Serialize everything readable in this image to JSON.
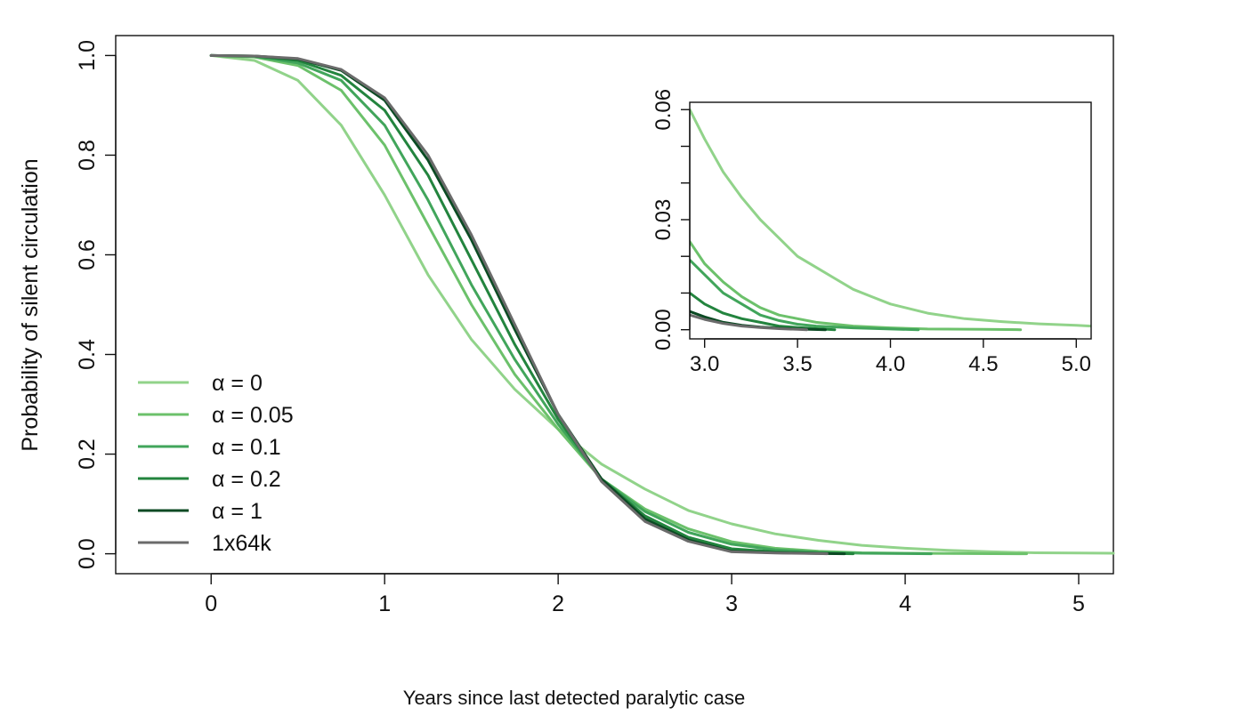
{
  "chart_data": [
    {
      "type": "line",
      "title": "",
      "xlabel": "Years since last detected paralytic case",
      "ylabel": "Probability of silent circulation",
      "xlim": [
        -0.55,
        5.2
      ],
      "ylim": [
        -0.04,
        1.04
      ],
      "xticks": [
        0,
        1,
        2,
        3,
        4,
        5
      ],
      "xtick_labels": [
        "0",
        "1",
        "2",
        "3",
        "4",
        "5"
      ],
      "yticks": [
        0.0,
        0.2,
        0.4,
        0.6,
        0.8,
        1.0
      ],
      "ytick_labels": [
        "0.0",
        "0.2",
        "0.4",
        "0.6",
        "0.8",
        "1.0"
      ],
      "grid": false,
      "legend_position": "bottom-left",
      "series": [
        {
          "name": "α = 0",
          "color": "#91d38a",
          "x": [
            0,
            0.25,
            0.5,
            0.75,
            1.0,
            1.25,
            1.5,
            1.75,
            2.0,
            2.25,
            2.5,
            2.75,
            3.0,
            3.25,
            3.5,
            3.75,
            4.0,
            4.25,
            4.5,
            4.75,
            5.0,
            5.2
          ],
          "y": [
            1.0,
            0.99,
            0.95,
            0.86,
            0.72,
            0.56,
            0.43,
            0.33,
            0.25,
            0.18,
            0.13,
            0.087,
            0.06,
            0.04,
            0.027,
            0.017,
            0.011,
            0.007,
            0.004,
            0.002,
            0.0015,
            0.001
          ]
        },
        {
          "name": "α = 0.05",
          "color": "#6cc16b",
          "x": [
            0,
            0.25,
            0.5,
            0.75,
            1.0,
            1.25,
            1.5,
            1.75,
            2.0,
            2.25,
            2.5,
            2.75,
            3.0,
            3.25,
            3.5,
            3.75,
            4.0,
            4.25,
            4.5,
            4.7
          ],
          "y": [
            1.0,
            0.997,
            0.98,
            0.93,
            0.82,
            0.66,
            0.5,
            0.36,
            0.25,
            0.15,
            0.09,
            0.05,
            0.024,
            0.011,
            0.005,
            0.002,
            0.001,
            0.0005,
            0.0002,
            0.0
          ]
        },
        {
          "name": "α = 0.1",
          "color": "#41a55b",
          "x": [
            0,
            0.25,
            0.5,
            0.75,
            1.0,
            1.25,
            1.5,
            1.75,
            2.0,
            2.25,
            2.5,
            2.75,
            3.0,
            3.25,
            3.5,
            3.75,
            4.0,
            4.15
          ],
          "y": [
            1.0,
            0.998,
            0.985,
            0.95,
            0.86,
            0.71,
            0.54,
            0.39,
            0.26,
            0.15,
            0.085,
            0.043,
            0.019,
            0.008,
            0.003,
            0.001,
            0.0003,
            0.0
          ]
        },
        {
          "name": "α = 0.2",
          "color": "#23843e",
          "x": [
            0,
            0.25,
            0.5,
            0.75,
            1.0,
            1.25,
            1.5,
            1.75,
            2.0,
            2.25,
            2.5,
            2.75,
            3.0,
            3.25,
            3.5,
            3.7
          ],
          "y": [
            1.0,
            0.999,
            0.99,
            0.96,
            0.89,
            0.76,
            0.59,
            0.42,
            0.27,
            0.15,
            0.076,
            0.033,
            0.01,
            0.004,
            0.001,
            0.0
          ]
        },
        {
          "name": "α = 1",
          "color": "#0b4a23",
          "x": [
            0,
            0.25,
            0.5,
            0.75,
            1.0,
            1.25,
            1.5,
            1.75,
            2.0,
            2.25,
            2.5,
            2.75,
            3.0,
            3.25,
            3.5,
            3.65
          ],
          "y": [
            1.0,
            0.999,
            0.993,
            0.97,
            0.91,
            0.79,
            0.63,
            0.45,
            0.28,
            0.15,
            0.07,
            0.028,
            0.005,
            0.002,
            0.0005,
            0.0
          ]
        },
        {
          "name": "1x64k",
          "color": "#6b6b6b",
          "x": [
            0,
            0.25,
            0.5,
            0.75,
            1.0,
            1.25,
            1.5,
            1.75,
            2.0,
            2.25,
            2.5,
            2.75,
            3.0,
            3.25,
            3.5,
            3.55
          ],
          "y": [
            1.0,
            0.999,
            0.994,
            0.972,
            0.915,
            0.8,
            0.64,
            0.46,
            0.28,
            0.145,
            0.065,
            0.025,
            0.004,
            0.0015,
            0.0003,
            0.0
          ]
        }
      ]
    },
    {
      "type": "line",
      "title": "",
      "xlabel": "",
      "ylabel": "",
      "xlim": [
        2.92,
        5.08
      ],
      "ylim": [
        -0.0025,
        0.062
      ],
      "xticks": [
        3.0,
        3.5,
        4.0,
        4.5,
        5.0
      ],
      "xtick_labels": [
        "3.0",
        "3.5",
        "4.0",
        "4.5",
        "5.0"
      ],
      "yticks": [
        0.0,
        0.01,
        0.02,
        0.03,
        0.04,
        0.05,
        0.06
      ],
      "ytick_labels": [
        "0.00",
        "",
        "",
        "0.03",
        "",
        "",
        "0.06"
      ],
      "grid": false,
      "legend_position": "none",
      "series": [
        {
          "name": "α = 0",
          "color": "#91d38a",
          "x": [
            2.92,
            3.0,
            3.1,
            3.2,
            3.3,
            3.4,
            3.5,
            3.6,
            3.7,
            3.8,
            3.9,
            4.0,
            4.2,
            4.4,
            4.6,
            4.8,
            5.0,
            5.08
          ],
          "y": [
            0.06,
            0.052,
            0.043,
            0.036,
            0.03,
            0.025,
            0.02,
            0.017,
            0.014,
            0.011,
            0.009,
            0.007,
            0.0045,
            0.003,
            0.0022,
            0.0016,
            0.0012,
            0.001
          ]
        },
        {
          "name": "α = 0.05",
          "color": "#6cc16b",
          "x": [
            2.92,
            3.0,
            3.1,
            3.2,
            3.3,
            3.4,
            3.5,
            3.6,
            3.7,
            3.8,
            4.0,
            4.2,
            4.5,
            4.7
          ],
          "y": [
            0.024,
            0.018,
            0.013,
            0.009,
            0.006,
            0.004,
            0.003,
            0.002,
            0.0015,
            0.001,
            0.0005,
            0.0002,
            0.0001,
            0.0
          ]
        },
        {
          "name": "α = 0.1",
          "color": "#41a55b",
          "x": [
            2.92,
            3.0,
            3.1,
            3.2,
            3.3,
            3.4,
            3.5,
            3.6,
            3.8,
            4.0,
            4.15
          ],
          "y": [
            0.019,
            0.015,
            0.01,
            0.007,
            0.004,
            0.0025,
            0.0015,
            0.001,
            0.0005,
            0.0002,
            0.0
          ]
        },
        {
          "name": "α = 0.2",
          "color": "#23843e",
          "x": [
            2.92,
            3.0,
            3.1,
            3.2,
            3.3,
            3.4,
            3.5,
            3.6,
            3.7
          ],
          "y": [
            0.01,
            0.007,
            0.0045,
            0.003,
            0.002,
            0.001,
            0.0006,
            0.0003,
            0.0
          ]
        },
        {
          "name": "α = 1",
          "color": "#0b4a23",
          "x": [
            2.92,
            3.0,
            3.1,
            3.2,
            3.3,
            3.4,
            3.5,
            3.65
          ],
          "y": [
            0.005,
            0.0035,
            0.002,
            0.0012,
            0.0007,
            0.0004,
            0.0002,
            0.0
          ]
        },
        {
          "name": "1x64k",
          "color": "#6b6b6b",
          "x": [
            2.92,
            3.0,
            3.1,
            3.2,
            3.3,
            3.4,
            3.5,
            3.55
          ],
          "y": [
            0.004,
            0.0028,
            0.0017,
            0.001,
            0.0006,
            0.0003,
            0.0001,
            0.0
          ]
        }
      ]
    }
  ],
  "legend": {
    "entries": [
      {
        "label": "α = 0",
        "color": "#91d38a"
      },
      {
        "label": "α = 0.05",
        "color": "#6cc16b"
      },
      {
        "label": "α = 0.1",
        "color": "#41a55b"
      },
      {
        "label": "α = 0.2",
        "color": "#23843e"
      },
      {
        "label": "α = 1",
        "color": "#0b4a23"
      },
      {
        "label": "1x64k",
        "color": "#6b6b6b"
      }
    ]
  }
}
